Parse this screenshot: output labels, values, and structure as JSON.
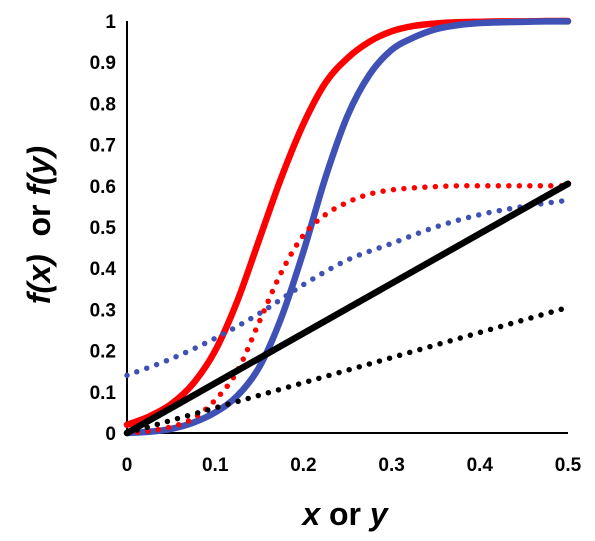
{
  "chart_data": {
    "type": "line",
    "title": "",
    "xlabel": {
      "var1": "x",
      "conj": " or ",
      "var2": "y"
    },
    "ylabel": {
      "var1": "f(x)",
      "conj": "  or ",
      "var2": "f(y)"
    },
    "xlim": [
      0,
      0.5
    ],
    "ylim": [
      0,
      1
    ],
    "x_ticks": [
      "0",
      "0.1",
      "0.2",
      "0.3",
      "0.4",
      "0.5"
    ],
    "y_ticks": [
      "0",
      "0.1",
      "0.2",
      "0.3",
      "0.4",
      "0.5",
      "0.6",
      "0.7",
      "0.8",
      "0.9",
      "1"
    ],
    "grid": false,
    "legend": "none",
    "series": [
      {
        "color": "#ff0000",
        "style": "solid",
        "x": [
          0,
          0.025,
          0.05,
          0.075,
          0.1,
          0.125,
          0.15,
          0.175,
          0.2,
          0.225,
          0.25,
          0.275,
          0.3,
          0.325,
          0.35,
          0.375,
          0.4,
          0.425,
          0.45,
          0.475,
          0.5
        ],
        "y": [
          0.02,
          0.04,
          0.07,
          0.12,
          0.2,
          0.32,
          0.47,
          0.62,
          0.75,
          0.85,
          0.91,
          0.95,
          0.975,
          0.988,
          0.994,
          0.997,
          0.998,
          0.999,
          0.999,
          1.0,
          1.0
        ]
      },
      {
        "color": "#3f51b5",
        "style": "solid",
        "x": [
          0,
          0.025,
          0.05,
          0.075,
          0.1,
          0.125,
          0.15,
          0.175,
          0.2,
          0.225,
          0.25,
          0.275,
          0.3,
          0.325,
          0.35,
          0.375,
          0.4,
          0.425,
          0.45,
          0.475,
          0.5
        ],
        "y": [
          0.0,
          0.003,
          0.01,
          0.025,
          0.05,
          0.09,
          0.16,
          0.28,
          0.44,
          0.62,
          0.77,
          0.87,
          0.93,
          0.96,
          0.98,
          0.99,
          0.995,
          0.997,
          0.998,
          0.999,
          0.999
        ]
      },
      {
        "color": "#ff0000",
        "style": "dotted",
        "x": [
          0,
          0.025,
          0.05,
          0.075,
          0.1,
          0.125,
          0.15,
          0.175,
          0.2,
          0.225,
          0.25,
          0.275,
          0.3,
          0.325,
          0.35,
          0.375,
          0.4,
          0.425,
          0.45,
          0.475,
          0.5
        ],
        "y": [
          0.0,
          0.005,
          0.015,
          0.035,
          0.08,
          0.15,
          0.27,
          0.39,
          0.48,
          0.53,
          0.56,
          0.58,
          0.59,
          0.595,
          0.598,
          0.6,
          0.6,
          0.6,
          0.6,
          0.6,
          0.6
        ]
      },
      {
        "color": "#3f51b5",
        "style": "dotted",
        "x": [
          0,
          0.05,
          0.1,
          0.15,
          0.2,
          0.25,
          0.3,
          0.35,
          0.4,
          0.45,
          0.5
        ],
        "y": [
          0.14,
          0.18,
          0.23,
          0.29,
          0.36,
          0.42,
          0.46,
          0.5,
          0.53,
          0.55,
          0.565
        ]
      },
      {
        "color": "#000000",
        "style": "solid",
        "x": [
          0,
          0.5
        ],
        "y": [
          0.0,
          0.605
        ]
      },
      {
        "color": "#000000",
        "style": "dotted",
        "x": [
          0,
          0.5
        ],
        "y": [
          0.0,
          0.305
        ]
      }
    ]
  }
}
